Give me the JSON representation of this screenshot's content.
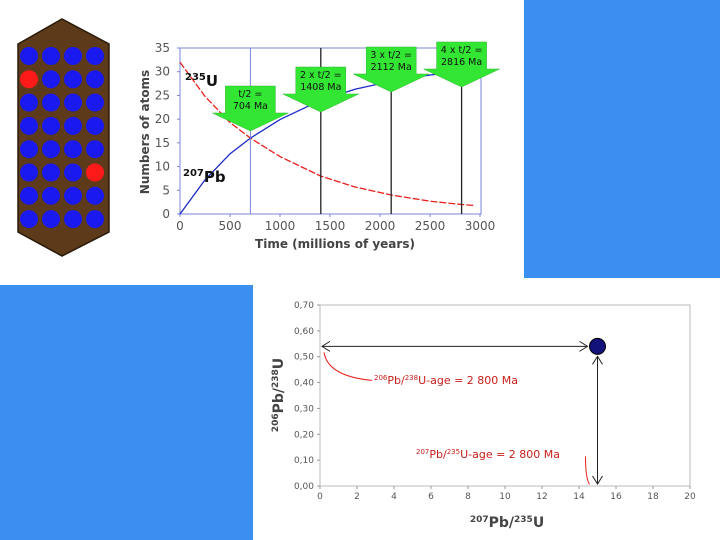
{
  "colors": {
    "background_blue": "#3b8ff0",
    "hex_fill": "#5c3a1a",
    "atom_blue": "#1a1af0",
    "atom_red": "#ff1a1a",
    "curve_u235": "#e8201c",
    "curve_pb207": "#1a28c8",
    "arrow_green": "#33e633",
    "concordia_red": "#e8201c"
  },
  "atom_grid": {
    "rows": [
      [
        "blue",
        "blue",
        "blue",
        "blue"
      ],
      [
        "red",
        "blue",
        "blue",
        "blue"
      ],
      [
        "blue",
        "blue",
        "blue",
        "blue"
      ],
      [
        "blue",
        "blue",
        "blue",
        "blue"
      ],
      [
        "blue",
        "blue",
        "blue",
        "blue"
      ],
      [
        "blue",
        "blue",
        "blue",
        "red"
      ],
      [
        "blue",
        "blue",
        "blue",
        "blue"
      ],
      [
        "blue",
        "blue",
        "blue",
        "blue"
      ]
    ]
  },
  "chart_data": [
    {
      "type": "line",
      "title": "",
      "xlabel": "Time (millions of years)",
      "ylabel": "Numbers of atoms",
      "xlim": [
        0,
        3000
      ],
      "ylim": [
        0,
        35
      ],
      "xticks": [
        "0",
        "500",
        "1000",
        "1500",
        "2000",
        "2500",
        "3000"
      ],
      "yticks": [
        "0",
        "5",
        "10",
        "15",
        "20",
        "25",
        "30",
        "35"
      ],
      "x": [
        0,
        250,
        500,
        704,
        1000,
        1408,
        1750,
        2112,
        2500,
        2816,
        2950
      ],
      "series": [
        {
          "name": "235U",
          "label_prefix": "235",
          "label_main": "U",
          "color": "#e8201c",
          "dashed": true,
          "values": [
            32,
            24.8,
            19.3,
            16.0,
            12.1,
            8.0,
            5.7,
            4.0,
            2.7,
            2.0,
            1.8
          ]
        },
        {
          "name": "207Pb",
          "label_prefix": "207",
          "label_main": "Pb",
          "color": "#1a28c8",
          "dashed": false,
          "values": [
            0,
            7.2,
            12.7,
            16.0,
            19.9,
            24.0,
            26.3,
            28.0,
            29.3,
            30.0,
            30.2
          ]
        }
      ],
      "half_lives": [
        {
          "x": 704,
          "text": [
            "t/2 =",
            "704 Ma"
          ]
        },
        {
          "x": 1408,
          "text": [
            "2 x t/2 =",
            "1408 Ma"
          ]
        },
        {
          "x": 2112,
          "text": [
            "3 x t/2 =",
            "2112 Ma"
          ]
        },
        {
          "x": 2816,
          "text": [
            "4 x t/2 =",
            "2816 Ma"
          ]
        }
      ]
    },
    {
      "type": "scatter",
      "xlabel_prefix": "207",
      "xlabel_mid": "Pb/",
      "xlabel_sup": "235",
      "xlabel_end": "U",
      "ylabel_prefix": "206",
      "ylabel_mid": "Pb/",
      "ylabel_sup": "238",
      "ylabel_end": "U",
      "xlim": [
        0,
        20
      ],
      "ylim": [
        0,
        0.7
      ],
      "xticks": [
        "0",
        "2",
        "4",
        "6",
        "8",
        "10",
        "12",
        "14",
        "16",
        "18",
        "20"
      ],
      "yticks": [
        "0,00",
        "0,10",
        "0,20",
        "0,30",
        "0,40",
        "0,50",
        "0,60",
        "0,70"
      ],
      "point": {
        "x": 15,
        "y": 0.54
      },
      "annotations": [
        {
          "sup1": "206",
          "mid": "Pb/",
          "sup2": "238",
          "tail": "U-age = 2 800 Ma"
        },
        {
          "sup1": "207",
          "mid": "Pb/",
          "sup2": "235",
          "tail": "U-age = 2 800 Ma"
        }
      ]
    }
  ]
}
